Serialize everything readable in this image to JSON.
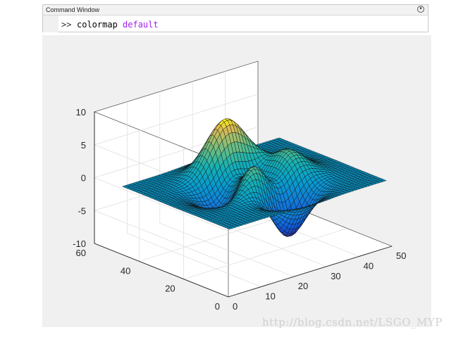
{
  "command_window": {
    "title": "Command Window",
    "prompt": ">>",
    "command": "colormap",
    "argument": "default"
  },
  "figure": {
    "background": "#f0f0f0"
  },
  "chart_data": {
    "type": "surface",
    "function": "peaks",
    "grid_size": [
      49,
      49
    ],
    "x_ticks": [
      "0",
      "10",
      "20",
      "30",
      "40",
      "50"
    ],
    "y_ticks": [
      "0",
      "20",
      "40",
      "60"
    ],
    "z_ticks": [
      "-10",
      "-5",
      "0",
      "5",
      "10"
    ],
    "xlim": [
      0,
      50
    ],
    "ylim": [
      0,
      60
    ],
    "zlim": [
      -10,
      10
    ],
    "colormap": "parula",
    "grid": true
  },
  "watermark": "http://blog.csdn.net/LSGO_MYP"
}
